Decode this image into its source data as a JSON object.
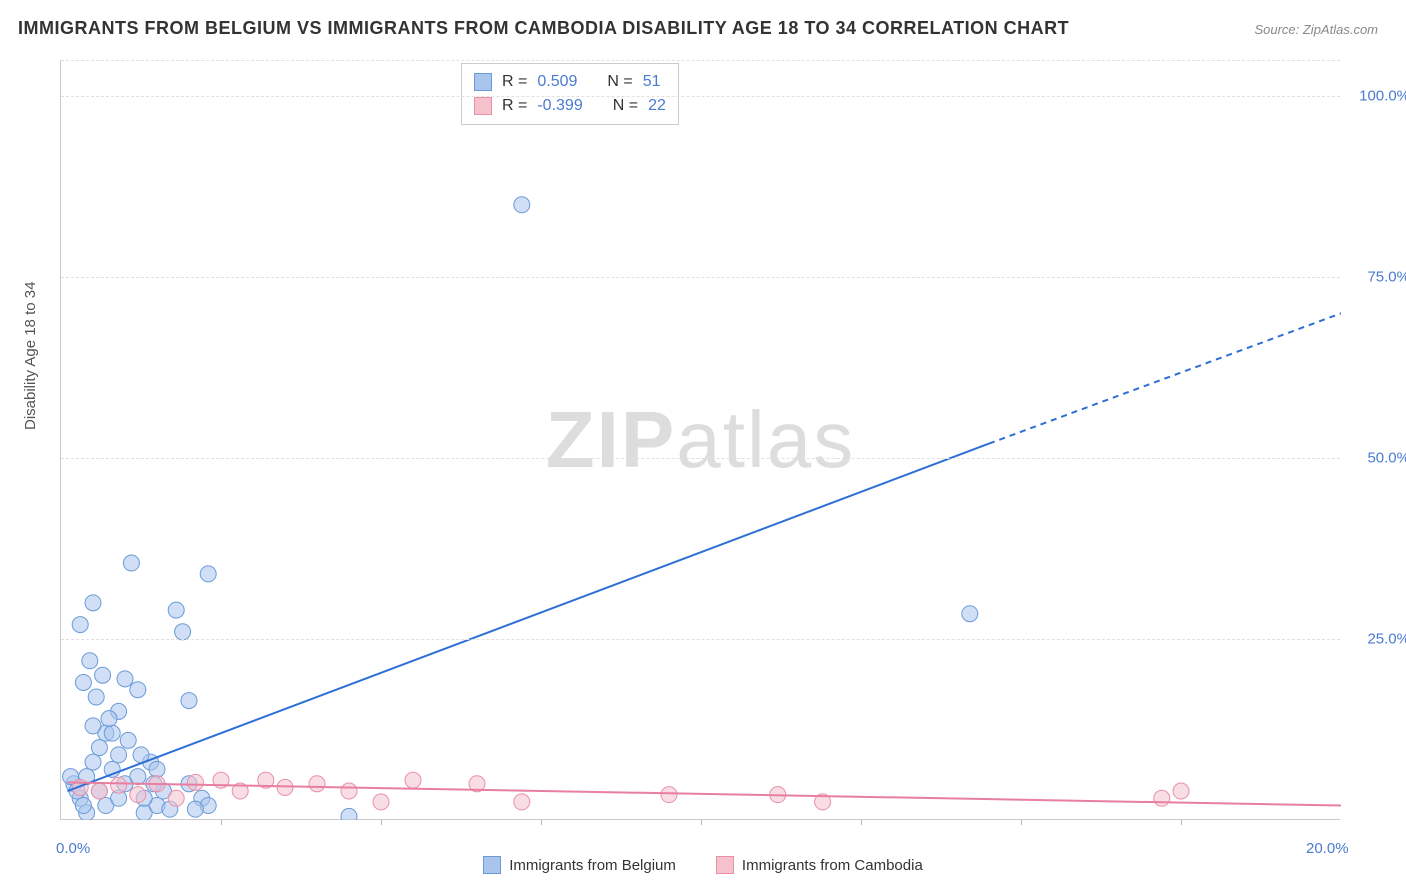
{
  "title": "IMMIGRANTS FROM BELGIUM VS IMMIGRANTS FROM CAMBODIA DISABILITY AGE 18 TO 34 CORRELATION CHART",
  "source": "Source: ZipAtlas.com",
  "ylabel": "Disability Age 18 to 34",
  "watermark_bold": "ZIP",
  "watermark_rest": "atlas",
  "chart": {
    "type": "scatter",
    "background_color": "#ffffff",
    "grid_color": "#e0e0e0",
    "axis_color": "#cccccc",
    "xlim": [
      0,
      20
    ],
    "ylim": [
      0,
      105
    ],
    "xticks_major": [
      0,
      20
    ],
    "xticks_minor": [
      2.5,
      5,
      7.5,
      10,
      12.5,
      15,
      17.5
    ],
    "yticks": [
      25,
      50,
      75,
      100
    ],
    "xtick_labels": {
      "0": "0.0%",
      "20": "20.0%"
    },
    "ytick_labels": {
      "25": "25.0%",
      "50": "50.0%",
      "75": "75.0%",
      "100": "100.0%"
    },
    "marker_radius": 8,
    "marker_opacity": 0.55,
    "line_width": 2,
    "series": [
      {
        "name": "Immigrants from Belgium",
        "color_fill": "#a9c5ec",
        "color_stroke": "#6a9bd8",
        "line_color": "#2e6fd6",
        "r_value": "0.509",
        "n_value": "51",
        "trend": {
          "x1": 0.1,
          "y1": 4,
          "x2": 14.5,
          "y2": 52,
          "x2dash": 20,
          "y2dash": 70
        },
        "points": [
          [
            0.2,
            5
          ],
          [
            0.3,
            3
          ],
          [
            0.4,
            6
          ],
          [
            0.5,
            8
          ],
          [
            0.6,
            4
          ],
          [
            0.7,
            2
          ],
          [
            0.8,
            7
          ],
          [
            0.9,
            3
          ],
          [
            1.0,
            5
          ],
          [
            0.3,
            27
          ],
          [
            0.5,
            30
          ],
          [
            1.0,
            19.5
          ],
          [
            1.2,
            18
          ],
          [
            0.9,
            15
          ],
          [
            0.7,
            12
          ],
          [
            1.1,
            35.5
          ],
          [
            2.3,
            34
          ],
          [
            1.8,
            29
          ],
          [
            1.9,
            26
          ],
          [
            2.0,
            16.5
          ],
          [
            2.0,
            5
          ],
          [
            2.2,
            3
          ],
          [
            1.3,
            1
          ],
          [
            1.4,
            8
          ],
          [
            1.5,
            2
          ],
          [
            1.6,
            4
          ],
          [
            1.7,
            1.5
          ],
          [
            0.4,
            1
          ],
          [
            0.35,
            2
          ],
          [
            0.6,
            10
          ],
          [
            0.25,
            4
          ],
          [
            0.15,
            6
          ],
          [
            4.5,
            0.5
          ],
          [
            7.2,
            85
          ],
          [
            14.2,
            28.5
          ],
          [
            1.2,
            6
          ],
          [
            1.3,
            3
          ],
          [
            1.5,
            7
          ],
          [
            0.8,
            12
          ],
          [
            0.9,
            9
          ],
          [
            2.3,
            2
          ],
          [
            2.1,
            1.5
          ],
          [
            0.5,
            13
          ],
          [
            0.55,
            17
          ],
          [
            0.75,
            14
          ],
          [
            1.05,
            11
          ],
          [
            1.25,
            9
          ],
          [
            1.45,
            5
          ],
          [
            0.45,
            22
          ],
          [
            0.35,
            19
          ],
          [
            0.65,
            20
          ]
        ]
      },
      {
        "name": "Immigrants from Cambodia",
        "color_fill": "#f4c1cd",
        "color_stroke": "#eb8fa8",
        "line_color": "#e87ea0",
        "r_value": "-0.399",
        "n_value": "22",
        "trend": {
          "x1": 0.1,
          "y1": 5.2,
          "x2": 20,
          "y2": 2
        },
        "points": [
          [
            0.3,
            4.5
          ],
          [
            0.6,
            4
          ],
          [
            0.9,
            4.8
          ],
          [
            1.2,
            3.5
          ],
          [
            1.5,
            5
          ],
          [
            1.8,
            3
          ],
          [
            2.1,
            5.2
          ],
          [
            2.5,
            5.5
          ],
          [
            2.8,
            4
          ],
          [
            3.2,
            5.5
          ],
          [
            3.5,
            4.5
          ],
          [
            4.0,
            5
          ],
          [
            4.5,
            4
          ],
          [
            5.0,
            2.5
          ],
          [
            5.5,
            5.5
          ],
          [
            6.5,
            5
          ],
          [
            7.2,
            2.5
          ],
          [
            9.5,
            3.5
          ],
          [
            11.2,
            3.5
          ],
          [
            11.9,
            2.5
          ],
          [
            17.2,
            3
          ],
          [
            17.5,
            4
          ]
        ]
      }
    ]
  },
  "legend_labels": {
    "r_prefix": "R =",
    "n_prefix": "N ="
  }
}
